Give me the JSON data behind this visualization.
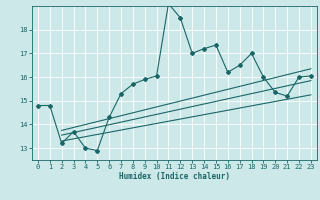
{
  "xlabel": "Humidex (Indice chaleur)",
  "bg_color": "#cde8e8",
  "line_color": "#1a6666",
  "grid_color": "#ffffff",
  "xlim": [
    -0.5,
    23.5
  ],
  "ylim": [
    12.5,
    19.0
  ],
  "yticks": [
    13,
    14,
    15,
    16,
    17,
    18
  ],
  "xticks": [
    0,
    1,
    2,
    3,
    4,
    5,
    6,
    7,
    8,
    9,
    10,
    11,
    12,
    13,
    14,
    15,
    16,
    17,
    18,
    19,
    20,
    21,
    22,
    23
  ],
  "main_x": [
    0,
    1,
    2,
    3,
    4,
    5,
    6,
    7,
    8,
    9,
    10,
    11,
    12,
    13,
    14,
    15,
    16,
    17,
    18,
    19,
    20,
    21,
    22,
    23
  ],
  "main_y": [
    14.8,
    14.8,
    13.2,
    13.7,
    13.0,
    12.9,
    14.3,
    15.3,
    15.7,
    15.9,
    16.05,
    19.1,
    18.5,
    17.0,
    17.2,
    17.35,
    16.2,
    16.5,
    17.0,
    16.0,
    15.35,
    15.2,
    16.0,
    16.05
  ],
  "line1_x": [
    2,
    23
  ],
  "line1_y": [
    13.55,
    15.85
  ],
  "line2_x": [
    2,
    23
  ],
  "line2_y": [
    13.3,
    15.25
  ],
  "line3_x": [
    2,
    23
  ],
  "line3_y": [
    13.75,
    16.35
  ],
  "xlabel_fontsize": 5.5,
  "tick_fontsize": 5.0
}
